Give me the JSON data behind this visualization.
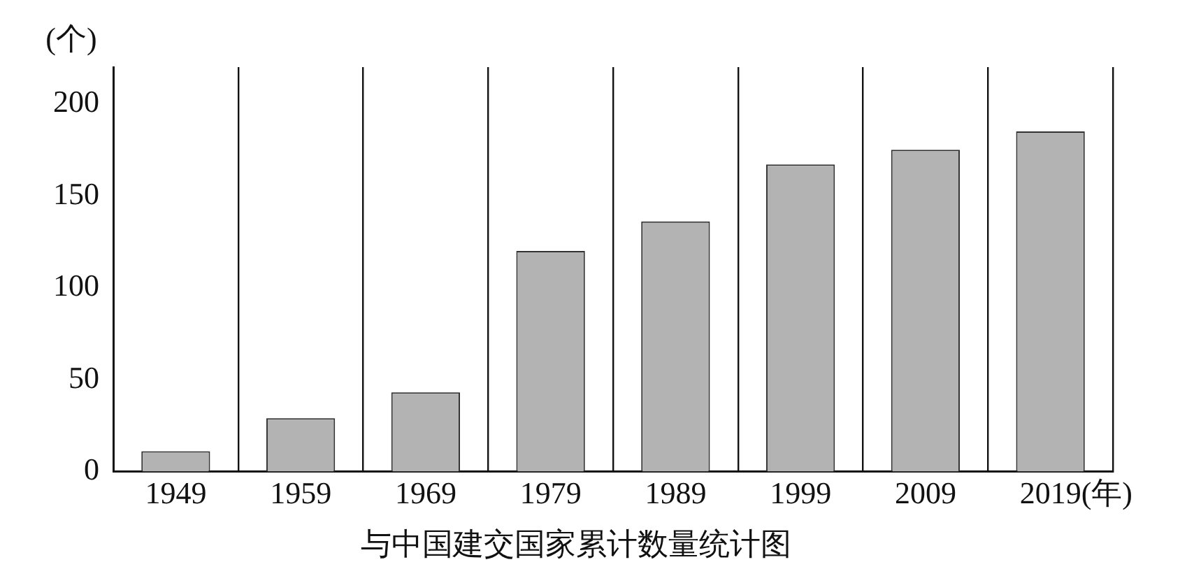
{
  "chart_data": {
    "type": "bar",
    "title": "与中国建交国家累计数量统计图",
    "ylabel": "(个)",
    "xlabel": "(年)",
    "categories": [
      "1949",
      "1959",
      "1969",
      "1979",
      "1989",
      "1999",
      "2009",
      "2019"
    ],
    "values": [
      11,
      29,
      43,
      120,
      136,
      167,
      175,
      185
    ],
    "color": "#b3b3b3",
    "ylim": [
      0,
      220
    ],
    "yticks": [
      0,
      50,
      100,
      150,
      200
    ],
    "grid": "x",
    "legend": false
  }
}
